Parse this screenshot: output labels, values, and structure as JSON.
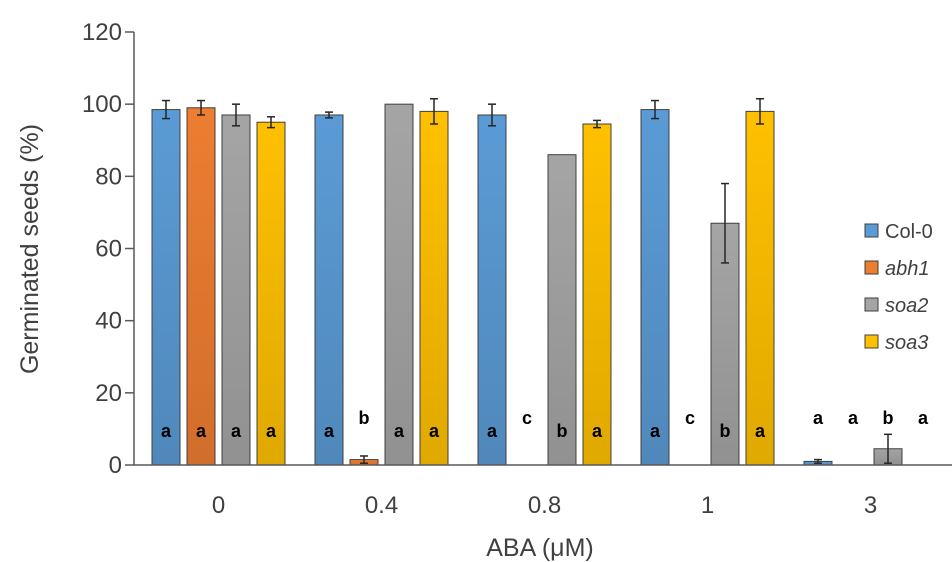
{
  "chart_data": {
    "type": "bar",
    "xlabel": "ABA (μM)",
    "ylabel": "Germinated seeds (%)",
    "ylim": [
      0,
      120
    ],
    "yticks": [
      0,
      20,
      40,
      60,
      80,
      100,
      120
    ],
    "categories": [
      "0",
      "0.4",
      "0.8",
      "1",
      "3"
    ],
    "grid": false,
    "legend_position": "right",
    "series": [
      {
        "name": "Col-0",
        "italic": false,
        "color": "#5B9BD5",
        "values": [
          98.5,
          97,
          97,
          98.5,
          1
        ],
        "errors": [
          2.5,
          0.8,
          3,
          2.5,
          0.5
        ],
        "letters": [
          "a",
          "a",
          "a",
          "a",
          "a"
        ]
      },
      {
        "name": "abh1",
        "italic": true,
        "color": "#ED7D31",
        "values": [
          99,
          1.5,
          0,
          0,
          0
        ],
        "errors": [
          2,
          1,
          0,
          0,
          0
        ],
        "letters": [
          "a",
          "b",
          "c",
          "c",
          "a"
        ]
      },
      {
        "name": "soa2",
        "italic": true,
        "color": "#A5A5A5",
        "values": [
          97,
          100,
          86,
          67,
          4.5
        ],
        "errors": [
          3,
          0,
          0,
          11,
          4
        ],
        "letters": [
          "a",
          "a",
          "b",
          "b",
          "b"
        ]
      },
      {
        "name": "soa3",
        "italic": true,
        "color": "#FFC000",
        "values": [
          95,
          98,
          94.5,
          98,
          0
        ],
        "errors": [
          1.5,
          3.5,
          1,
          3.5,
          0
        ],
        "letters": [
          "a",
          "a",
          "a",
          "a",
          "a"
        ]
      }
    ]
  }
}
